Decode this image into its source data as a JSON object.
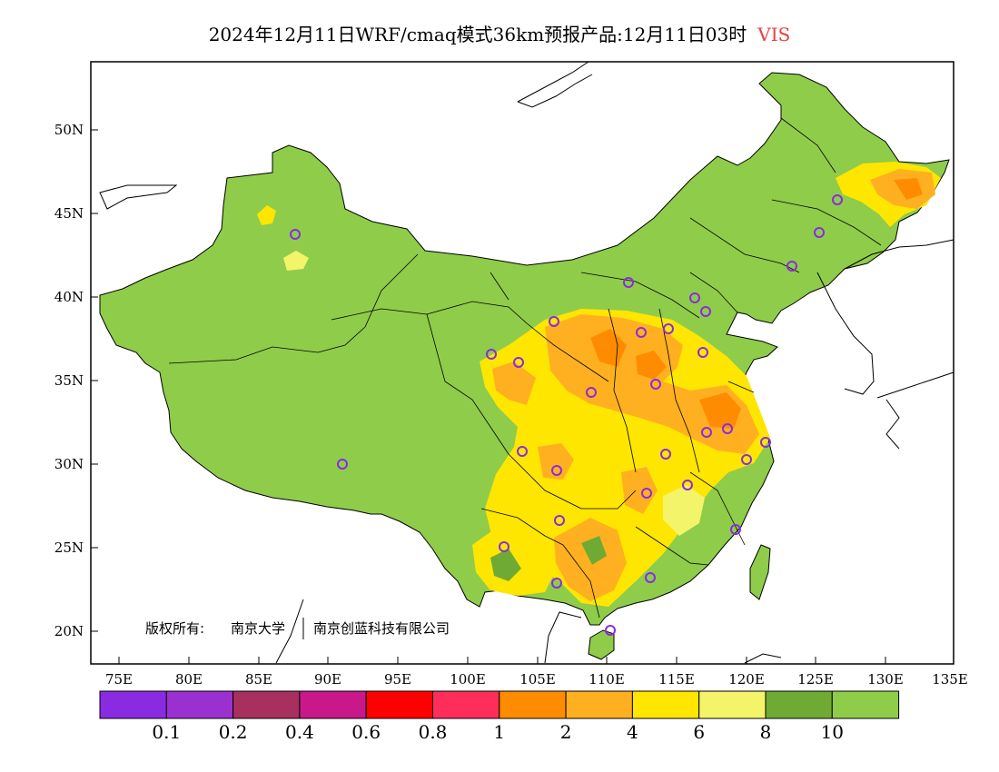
{
  "title": {
    "text": "2024年12月11日WRF/cmaq模式36km预报产品:12月11日03时",
    "variable": "VIS",
    "variable_color": "#e8413b"
  },
  "axes": {
    "lat_labels": [
      "50N",
      "45N",
      "40N",
      "35N",
      "30N",
      "25N",
      "20N"
    ],
    "lon_labels": [
      "75E",
      "80E",
      "85E",
      "90E",
      "95E",
      "100E",
      "105E",
      "110E",
      "115E",
      "120E",
      "125E",
      "130E",
      "135E"
    ]
  },
  "copyright": {
    "prefix": "版权所有:",
    "org1": "南京大学",
    "org2": "南京创蓝科技有限公司"
  },
  "legend": {
    "colors": [
      "#8a2be2",
      "#9b30d0",
      "#a8305e",
      "#c8188a",
      "#ff0000",
      "#ff2d5a",
      "#ff8c00",
      "#ffb020",
      "#ffe600",
      "#f4f46a",
      "#6fab34",
      "#8fcc4a"
    ],
    "labels": [
      "0.1",
      "0.2",
      "0.4",
      "0.6",
      "0.8",
      "1",
      "2",
      "4",
      "6",
      "8",
      "10"
    ]
  },
  "colors": {
    "land_green": "#8fcc4a",
    "yellow": "#ffe600",
    "orange": "#ffb020",
    "dark_orange": "#ff8c00",
    "marker": "#8a2be2"
  }
}
